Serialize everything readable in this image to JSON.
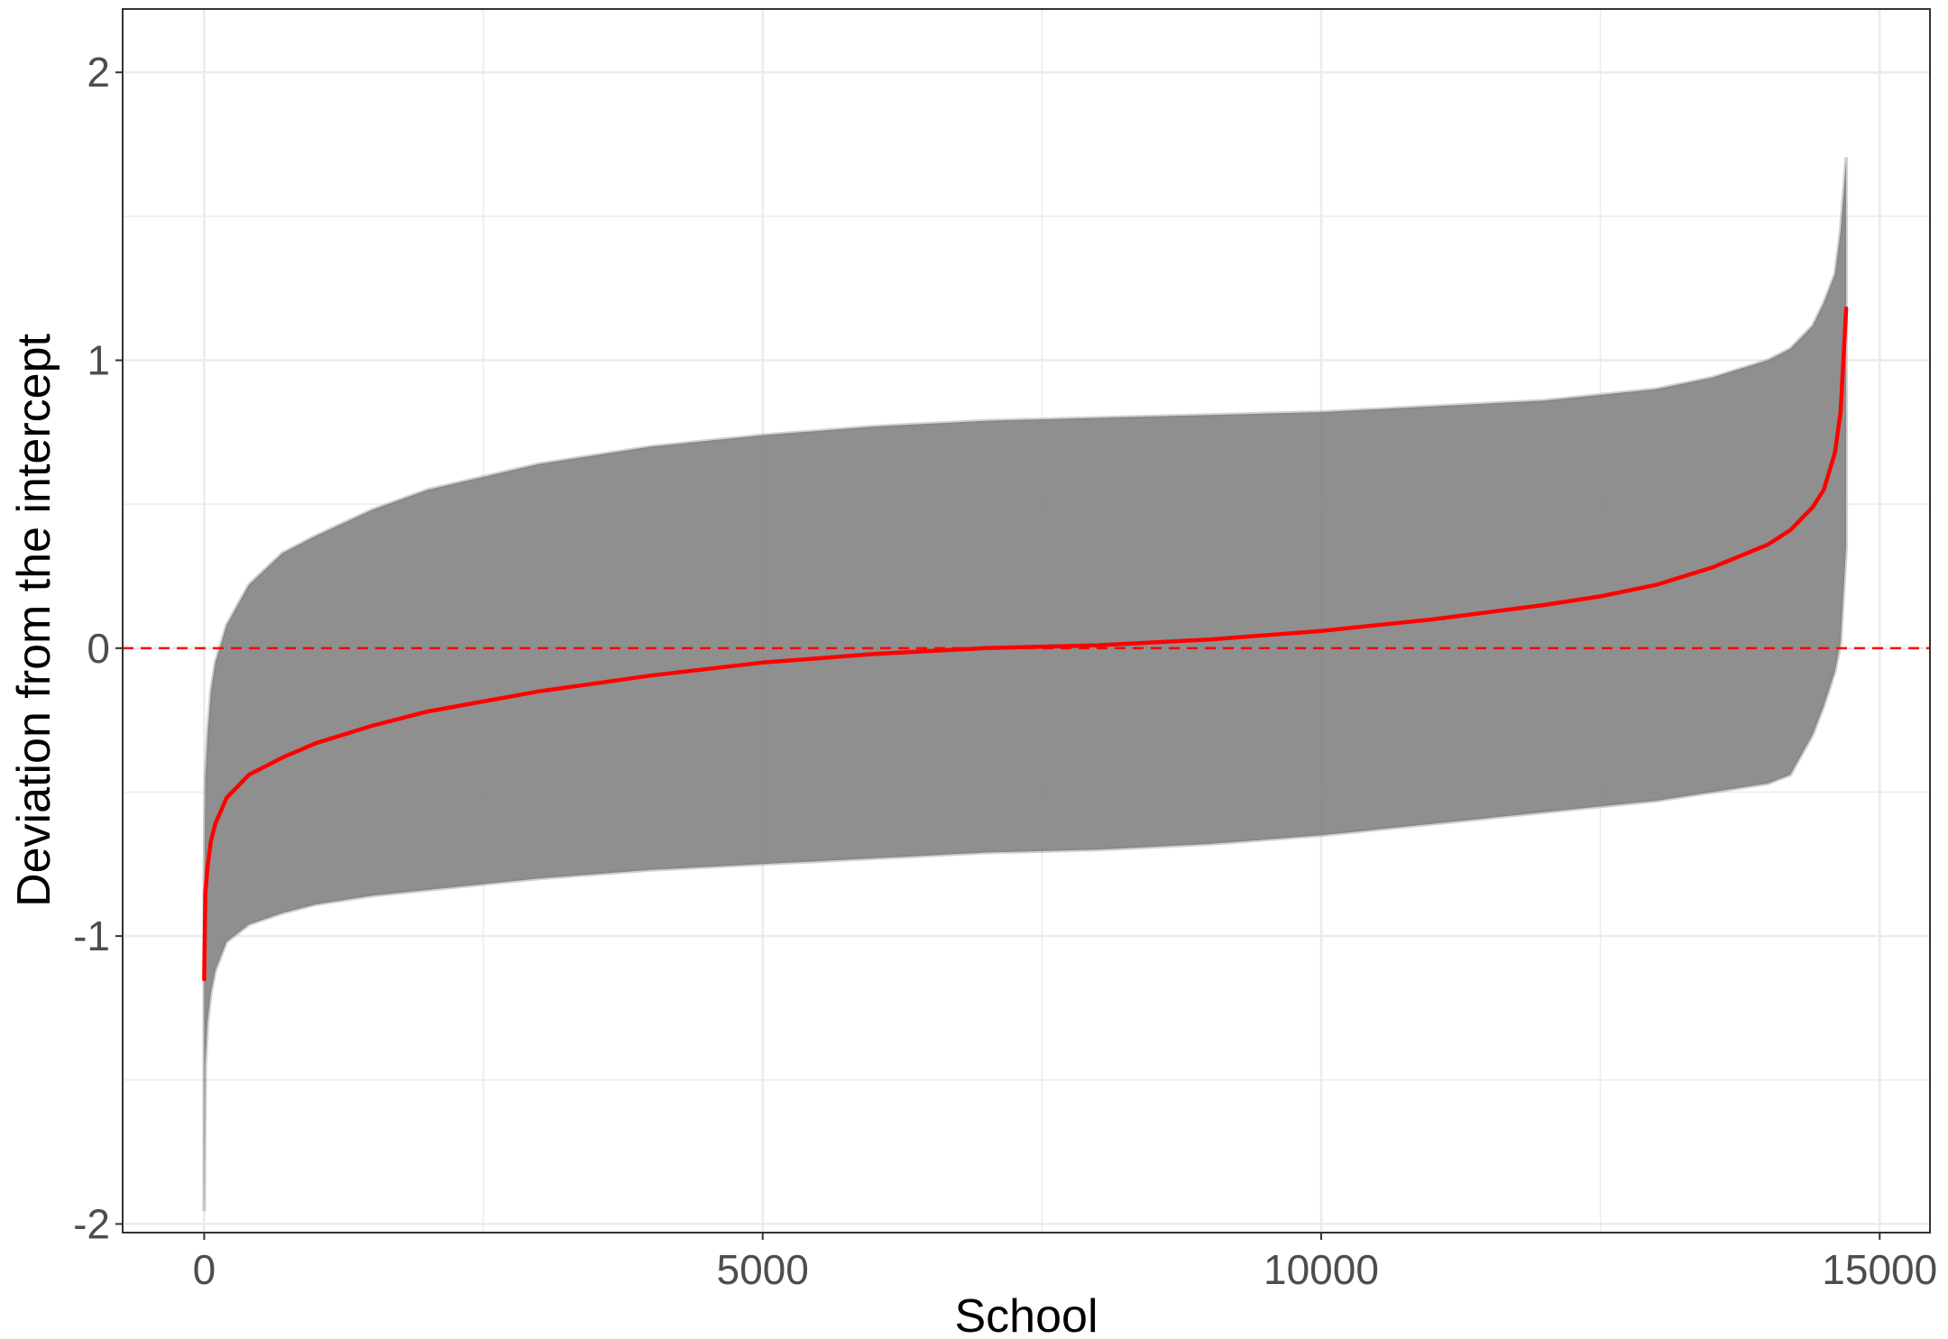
{
  "chart_data": {
    "type": "line",
    "title": "",
    "xlabel": "School",
    "ylabel": "Deviation from the intercept",
    "xlim": [
      -730,
      15450
    ],
    "ylim": [
      -2.03,
      2.22
    ],
    "x_ticks": [
      0,
      5000,
      10000,
      15000
    ],
    "x_tick_labels": [
      "0",
      "5000",
      "10000",
      "15000"
    ],
    "y_ticks": [
      -2,
      -1,
      0,
      1,
      2
    ],
    "y_tick_labels": [
      "-2",
      "-1",
      "0",
      "1",
      "2"
    ],
    "grid": true,
    "legend": "none",
    "reference_line": {
      "y": 0,
      "style": "dashed",
      "color": "#ff0000"
    },
    "colors": {
      "estimate": "#ff0000",
      "interval": "#7f7f7f",
      "panel_border": "#333333",
      "grid": "#ebebeb"
    },
    "series": [
      {
        "type": "line",
        "x": [
          0,
          10,
          30,
          60,
          100,
          200,
          400,
          700,
          1000,
          1500,
          2000,
          3000,
          4000,
          5000,
          6000,
          7000,
          8000,
          9000,
          10000,
          11000,
          12000,
          12500,
          13000,
          13500,
          14000,
          14200,
          14400,
          14500,
          14600,
          14650,
          14700
        ],
        "y": [
          -1.15,
          -0.85,
          -0.76,
          -0.67,
          -0.61,
          -0.52,
          -0.44,
          -0.38,
          -0.33,
          -0.27,
          -0.22,
          -0.15,
          -0.095,
          -0.05,
          -0.02,
          0.0,
          0.01,
          0.03,
          0.06,
          0.1,
          0.15,
          0.18,
          0.22,
          0.28,
          0.36,
          0.41,
          0.49,
          0.55,
          0.68,
          0.82,
          1.18
        ]
      },
      {
        "type": "area",
        "x": [
          0,
          10,
          30,
          60,
          100,
          200,
          400,
          700,
          1000,
          1500,
          2000,
          3000,
          4000,
          5000,
          6000,
          7000,
          8000,
          9000,
          10000,
          11000,
          12000,
          12500,
          13000,
          13500,
          14000,
          14200,
          14400,
          14500,
          14600,
          14650,
          14700
        ],
        "lower": [
          -1.95,
          -1.45,
          -1.3,
          -1.2,
          -1.12,
          -1.02,
          -0.96,
          -0.92,
          -0.89,
          -0.86,
          -0.84,
          -0.8,
          -0.77,
          -0.75,
          -0.73,
          -0.71,
          -0.7,
          -0.68,
          -0.65,
          -0.61,
          -0.57,
          -0.55,
          -0.53,
          -0.5,
          -0.47,
          -0.44,
          -0.3,
          -0.2,
          -0.08,
          0.02,
          0.35
        ],
        "upper": [
          -0.85,
          -0.45,
          -0.3,
          -0.15,
          -0.05,
          0.08,
          0.22,
          0.33,
          0.39,
          0.48,
          0.55,
          0.64,
          0.7,
          0.74,
          0.77,
          0.79,
          0.8,
          0.81,
          0.82,
          0.84,
          0.86,
          0.88,
          0.9,
          0.94,
          1.0,
          1.04,
          1.12,
          1.2,
          1.3,
          1.45,
          1.7
        ]
      }
    ]
  }
}
